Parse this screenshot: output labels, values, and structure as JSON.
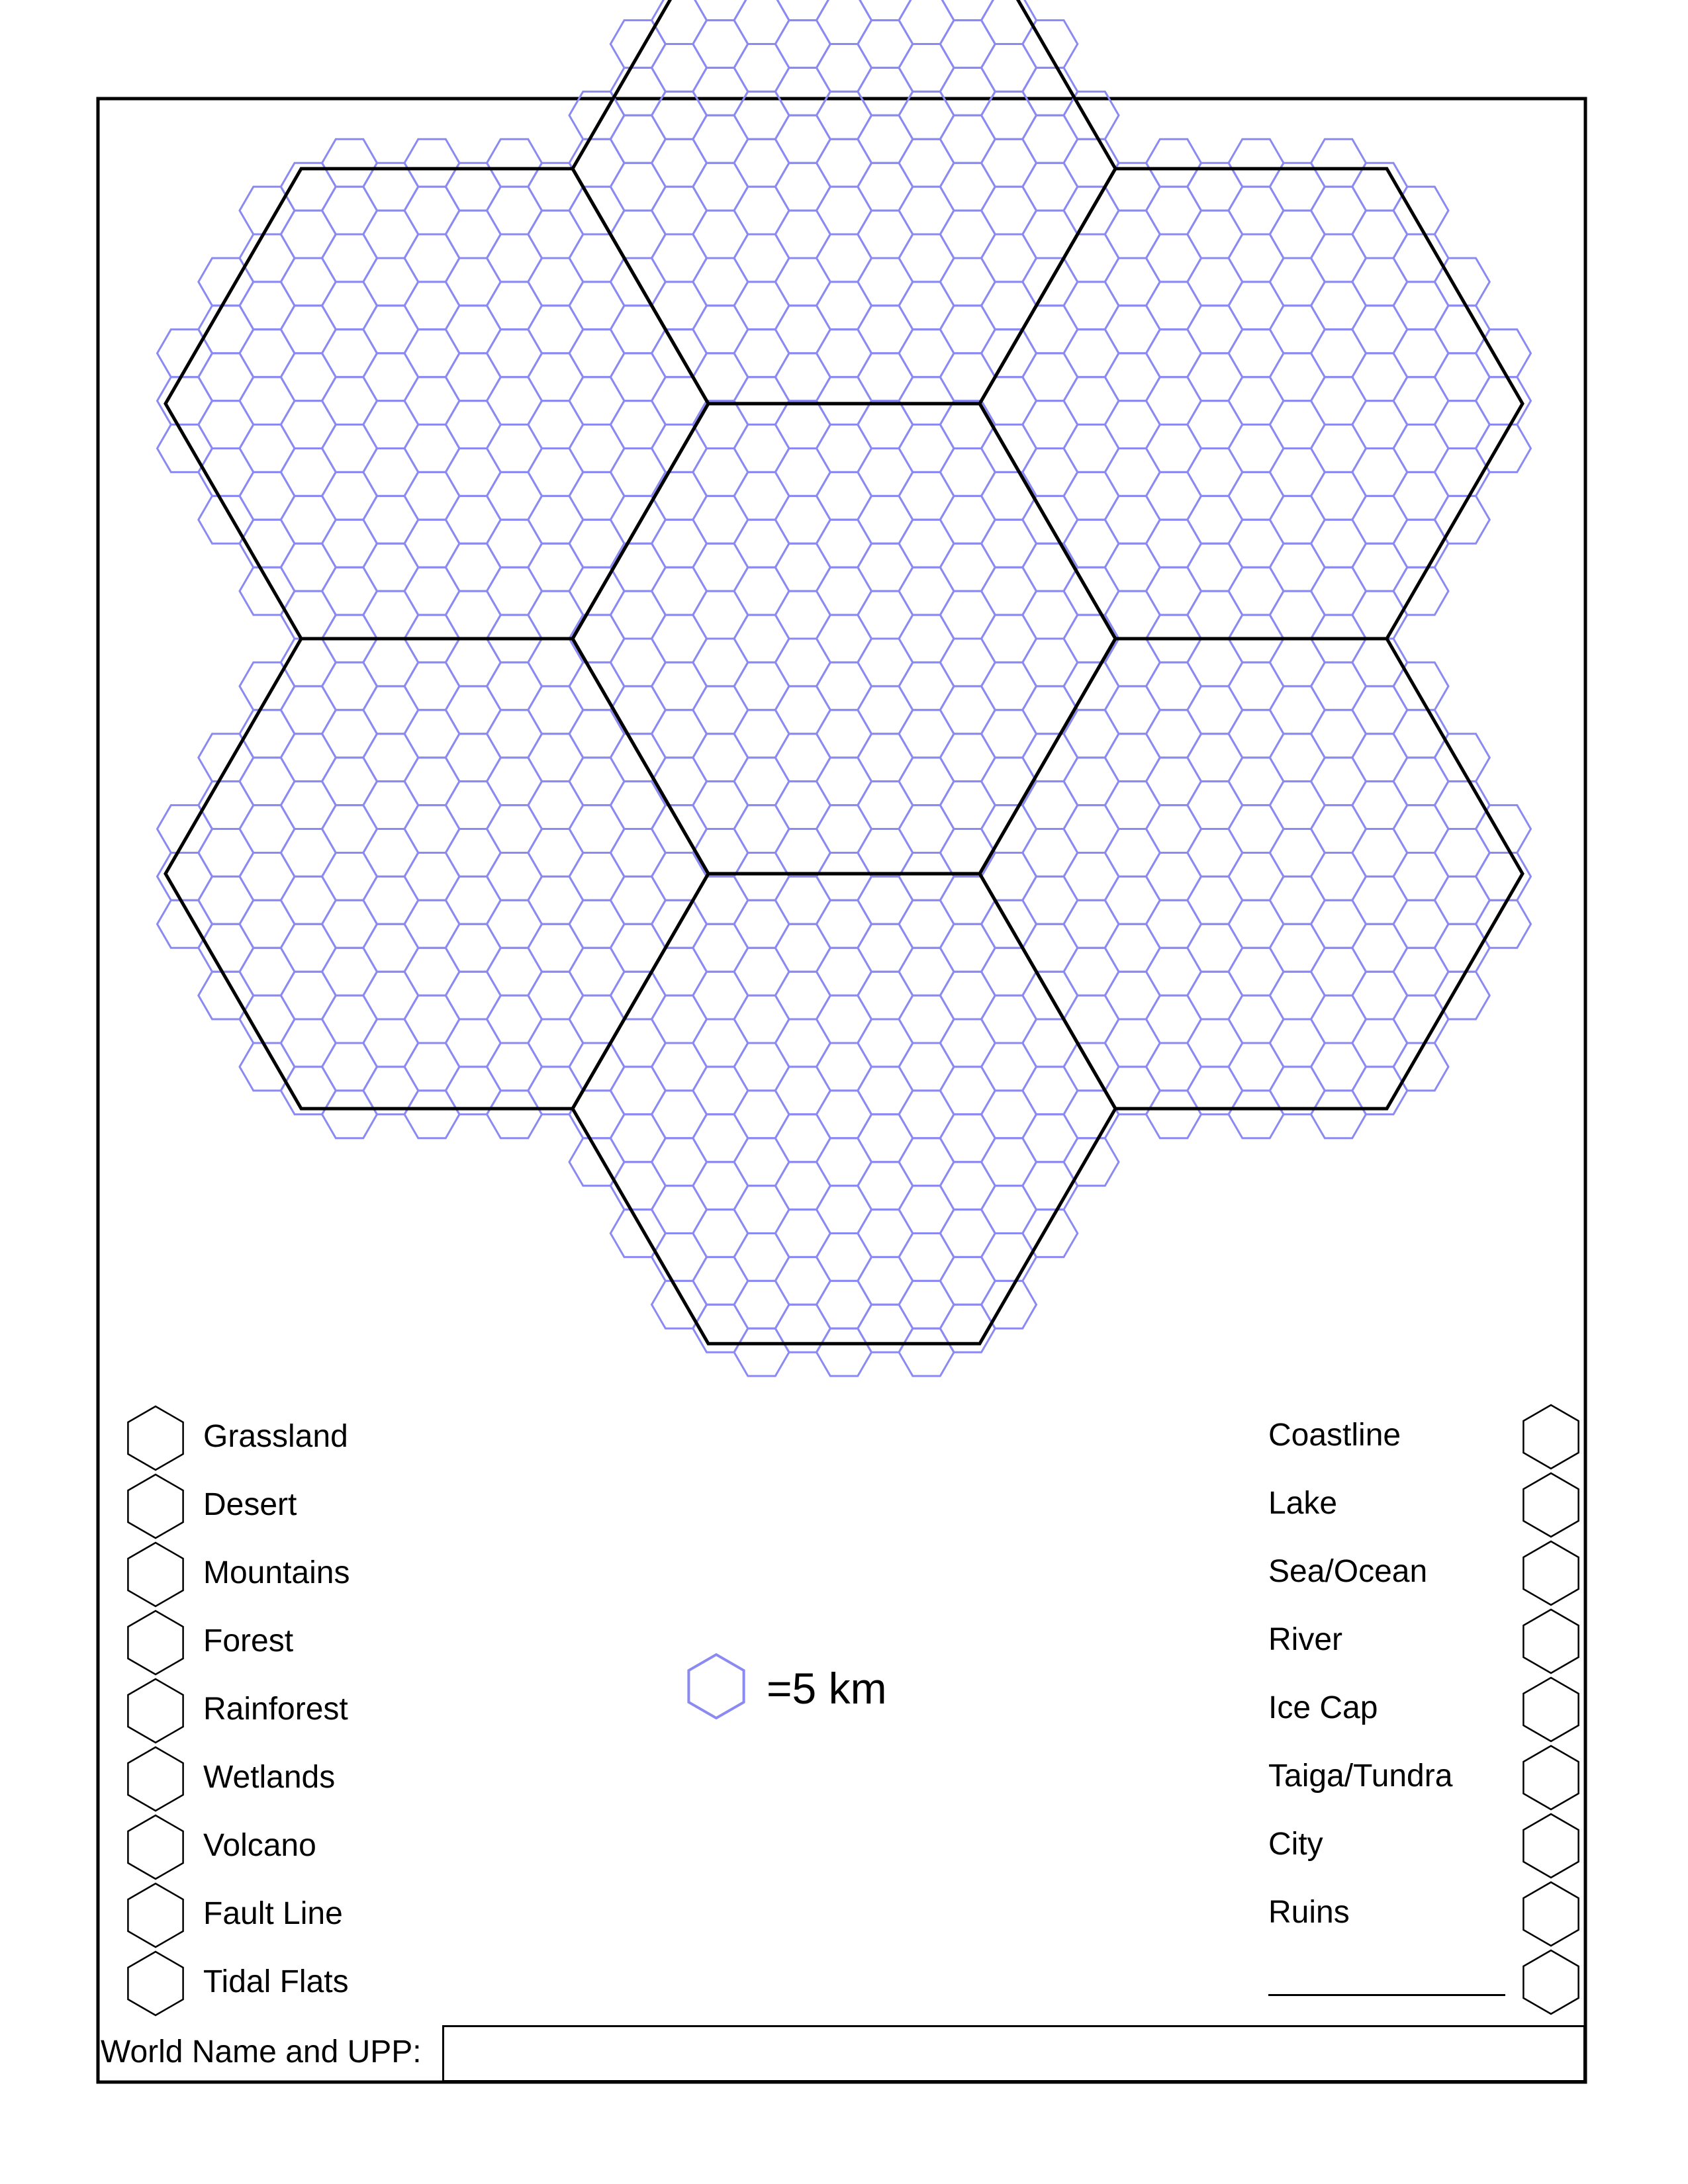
{
  "legend_left": [
    {
      "label": "Grassland"
    },
    {
      "label": "Desert"
    },
    {
      "label": "Mountains"
    },
    {
      "label": "Forest"
    },
    {
      "label": "Rainforest"
    },
    {
      "label": "Wetlands"
    },
    {
      "label": "Volcano"
    },
    {
      "label": "Fault Line"
    },
    {
      "label": "Tidal Flats"
    }
  ],
  "legend_right": [
    {
      "label": "Coastline"
    },
    {
      "label": "Lake"
    },
    {
      "label": "Sea/Ocean"
    },
    {
      "label": "River"
    },
    {
      "label": "Ice Cap"
    },
    {
      "label": "Taiga/Tundra"
    },
    {
      "label": "City"
    },
    {
      "label": "Ruins"
    },
    {
      "label": ""
    }
  ],
  "scale": {
    "label": "=5 km"
  },
  "world_name": {
    "label": "World Name and UPP:",
    "value": ""
  },
  "colors": {
    "grid": "#4a4ae6",
    "grid_light": "#8a8af2",
    "outline": "#000000"
  }
}
